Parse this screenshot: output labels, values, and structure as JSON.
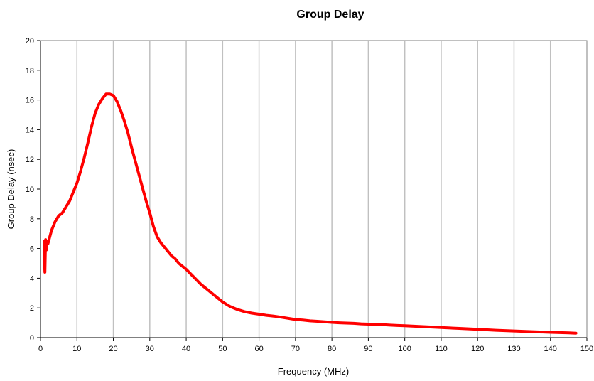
{
  "chart_data": {
    "type": "line",
    "title": "Group Delay",
    "xlabel": "Frequency (MHz)",
    "ylabel": "Group Delay (nsec)",
    "xlim": [
      0,
      150
    ],
    "ylim": [
      0,
      20
    ],
    "xticks": [
      0,
      10,
      20,
      30,
      40,
      50,
      60,
      70,
      80,
      90,
      100,
      110,
      120,
      130,
      140,
      150
    ],
    "yticks": [
      0,
      2,
      4,
      6,
      8,
      10,
      12,
      14,
      16,
      18,
      20
    ],
    "grid": "vertical",
    "legend": "none",
    "series": [
      {
        "color": "#ff0000",
        "x": [
          1.0,
          1.1,
          1.2,
          1.3,
          1.4,
          1.5,
          1.6,
          1.8,
          2,
          3,
          4,
          5,
          6,
          7,
          8,
          9,
          10,
          11,
          12,
          13,
          14,
          15,
          16,
          17,
          18,
          19,
          20,
          21,
          22,
          23,
          24,
          25,
          26,
          27,
          28,
          29,
          30,
          31,
          32,
          33,
          34,
          35,
          36,
          37,
          38,
          40,
          42,
          44,
          46,
          48,
          50,
          52,
          54,
          56,
          58,
          60,
          62,
          64,
          66,
          68,
          70,
          72,
          74,
          76,
          78,
          80,
          82,
          84,
          86,
          88,
          90,
          92,
          94,
          96,
          98,
          100,
          105,
          110,
          115,
          120,
          125,
          130,
          135,
          140,
          145,
          147
        ],
        "y": [
          6.5,
          5.0,
          4.4,
          5.6,
          6.6,
          6.2,
          5.9,
          6.5,
          6.3,
          7.2,
          7.8,
          8.2,
          8.4,
          8.8,
          9.2,
          9.8,
          10.4,
          11.2,
          12.1,
          13.1,
          14.2,
          15.1,
          15.7,
          16.1,
          16.4,
          16.4,
          16.3,
          15.9,
          15.3,
          14.6,
          13.8,
          12.8,
          11.9,
          11.0,
          10.1,
          9.2,
          8.4,
          7.5,
          6.8,
          6.4,
          6.1,
          5.8,
          5.5,
          5.3,
          5.0,
          4.6,
          4.1,
          3.6,
          3.2,
          2.8,
          2.4,
          2.1,
          1.9,
          1.75,
          1.65,
          1.58,
          1.5,
          1.45,
          1.38,
          1.3,
          1.22,
          1.18,
          1.13,
          1.1,
          1.06,
          1.03,
          1.0,
          0.98,
          0.96,
          0.93,
          0.91,
          0.89,
          0.87,
          0.84,
          0.82,
          0.8,
          0.74,
          0.68,
          0.62,
          0.56,
          0.5,
          0.45,
          0.4,
          0.36,
          0.32,
          0.3
        ]
      }
    ]
  }
}
